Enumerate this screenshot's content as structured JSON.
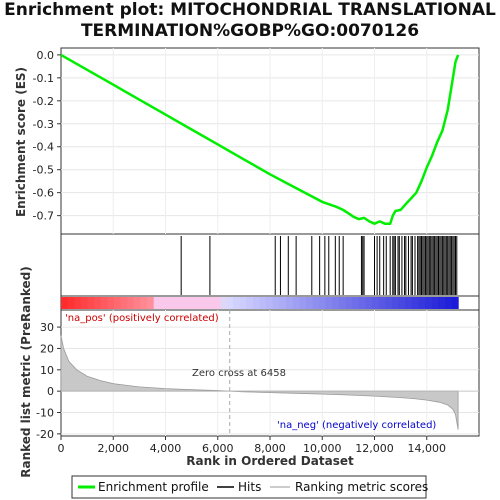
{
  "title_lines": [
    "Enrichment plot: MITOCHONDRIAL TRANSLATIONAL",
    "TERMINATION%GOBP%GO:0070126"
  ],
  "chart_data": {
    "type": "line",
    "x_label": "Rank in Ordered Dataset",
    "x_range": [
      0,
      16000
    ],
    "x_ticks": [
      0,
      2000,
      4000,
      6000,
      8000,
      10000,
      12000,
      14000
    ],
    "x_tick_labels": [
      "0",
      "2,000",
      "4,000",
      "6,000",
      "8,000",
      "10,000",
      "12,000",
      "14,000"
    ],
    "n_genes": 15200,
    "es_panel": {
      "y_label": "Enrichment score (ES)",
      "y_range": [
        -0.78,
        0.03
      ],
      "y_ticks": [
        0.0,
        -0.1,
        -0.2,
        -0.3,
        -0.4,
        -0.5,
        -0.6,
        -0.7
      ],
      "y_tick_labels": [
        "0.0",
        "-0.1",
        "-0.2",
        "-0.3",
        "-0.4",
        "-0.5",
        "-0.6",
        "-0.7"
      ],
      "series_name": "Enrichment profile",
      "color": "#00ee00",
      "x": [
        0,
        1000,
        2000,
        3000,
        4000,
        5000,
        6000,
        7000,
        8000,
        9000,
        10000,
        10500,
        10800,
        11000,
        11200,
        11400,
        11600,
        11800,
        12000,
        12200,
        12400,
        12600,
        12700,
        12800,
        13000,
        13200,
        13400,
        13600,
        13800,
        14000,
        14200,
        14400,
        14600,
        14800,
        15000,
        15100,
        15200
      ],
      "y": [
        0.0,
        -0.065,
        -0.13,
        -0.195,
        -0.26,
        -0.325,
        -0.39,
        -0.455,
        -0.52,
        -0.58,
        -0.64,
        -0.66,
        -0.675,
        -0.69,
        -0.705,
        -0.715,
        -0.71,
        -0.725,
        -0.735,
        -0.725,
        -0.735,
        -0.735,
        -0.7,
        -0.68,
        -0.675,
        -0.65,
        -0.625,
        -0.6,
        -0.55,
        -0.49,
        -0.44,
        -0.38,
        -0.33,
        -0.24,
        -0.1,
        -0.03,
        0.0
      ]
    },
    "hits_panel": {
      "series_name": "Hits",
      "positions": [
        4600,
        5700,
        8200,
        8400,
        8700,
        9000,
        9600,
        9900,
        10100,
        10250,
        10500,
        10650,
        10800,
        11500,
        11550,
        11600,
        12000,
        12100,
        12200,
        12350,
        12450,
        12600,
        12700,
        12750,
        12800,
        12900,
        12950,
        13050,
        13150,
        13200,
        13300,
        13400,
        13450,
        13550,
        13650,
        13700,
        13750,
        13800,
        13850,
        13900,
        13950,
        14000,
        14050,
        14100,
        14150,
        14200,
        14250,
        14300,
        14350,
        14400,
        14450,
        14500,
        14550,
        14600,
        14650,
        14700,
        14750,
        14800,
        14850,
        14900,
        14950,
        15000,
        15050,
        15100,
        15150
      ]
    },
    "ranked_panel": {
      "y_label": "Ranked list metric (PreRanked)",
      "y_range": [
        -21,
        38
      ],
      "y_ticks": [
        30,
        20,
        10,
        0,
        -10,
        -20
      ],
      "y_tick_labels": [
        "30",
        "20",
        "10",
        "0",
        "-10",
        "-20"
      ],
      "series_name": "Ranking metric scores",
      "x": [
        0,
        100,
        300,
        600,
        1000,
        1500,
        2000,
        3000,
        4000,
        5000,
        6000,
        6458,
        7000,
        8000,
        9000,
        10000,
        11000,
        12000,
        13000,
        13500,
        14000,
        14500,
        14800,
        15000,
        15100,
        15200
      ],
      "y": [
        26,
        20,
        14,
        10,
        7,
        5,
        3.5,
        2,
        1.2,
        0.7,
        0.3,
        0.0,
        -0.3,
        -0.7,
        -1.0,
        -1.4,
        -1.8,
        -2.3,
        -3.0,
        -3.5,
        -4.2,
        -5.2,
        -6.5,
        -8.5,
        -11,
        -18
      ],
      "zero_cross_label": "Zero cross at 6458",
      "zero_cross": 6458,
      "pos_label": "'na_pos' (positively correlated)",
      "neg_label": "'na_neg' (negatively correlated)"
    },
    "legend": {
      "placement": "bottom",
      "items": [
        "Enrichment profile",
        "Hits",
        "Ranking metric scores"
      ]
    }
  }
}
